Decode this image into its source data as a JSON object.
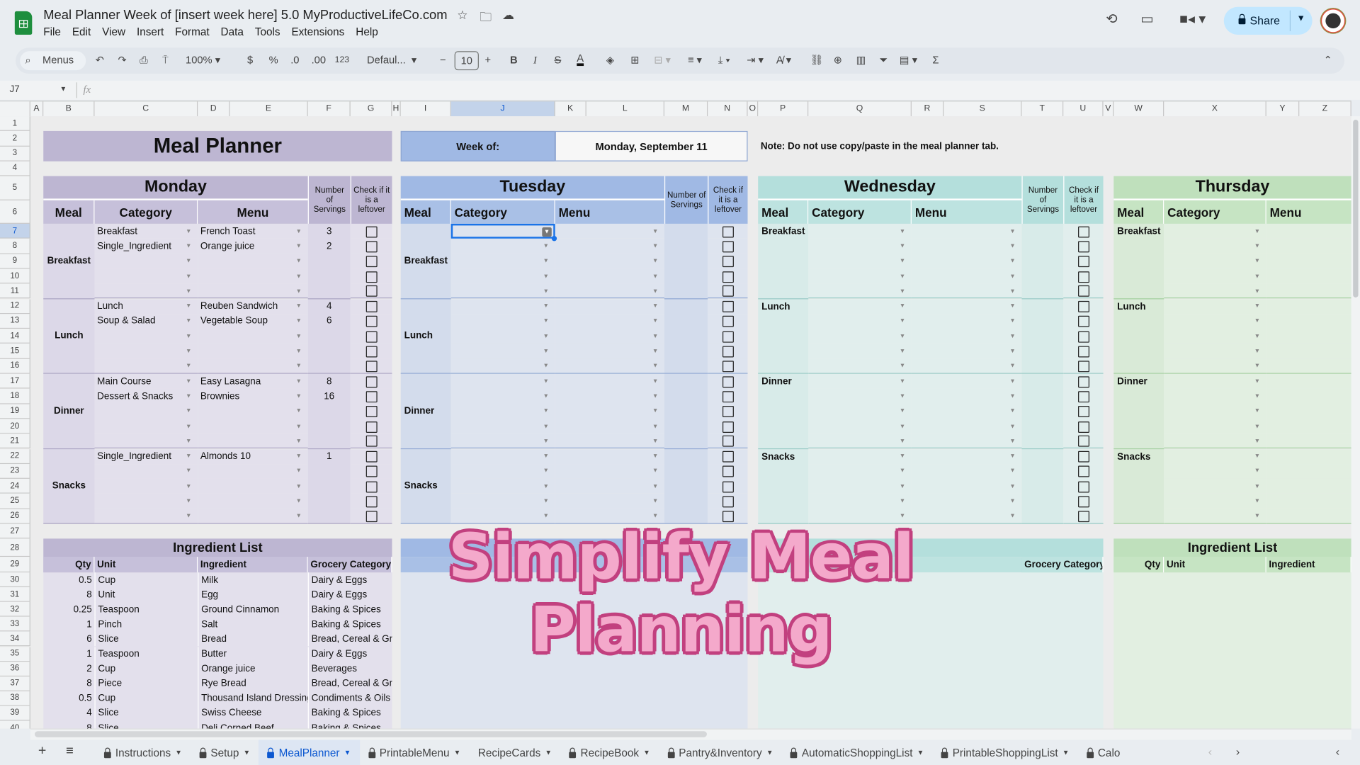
{
  "app": {
    "title": "Meal Planner Week of [insert week here] 5.0 MyProductiveLifeCo.com",
    "menu": [
      "File",
      "Edit",
      "View",
      "Insert",
      "Format",
      "Data",
      "Tools",
      "Extensions",
      "Help"
    ],
    "share_label": "Share"
  },
  "toolbar": {
    "search": "Menus",
    "zoom": "100%",
    "currency": "$",
    "percent": "%",
    "decrease_decimal": ".0",
    "increase_decimal": ".00",
    "number_format": "123",
    "font": "Defaul...",
    "font_size": "10",
    "bold": "B",
    "italic": "I",
    "text_color": "A",
    "functions": "Σ"
  },
  "formula_bar": {
    "cell_ref": "J7",
    "fx": "fx",
    "value": ""
  },
  "selected_cell": "J7",
  "columns": [
    "A",
    "B",
    "C",
    "D",
    "E",
    "F",
    "G",
    "H",
    "I",
    "J",
    "K",
    "L",
    "M",
    "N",
    "O",
    "P",
    "Q",
    "R",
    "S",
    "T",
    "U",
    "V",
    "W",
    "X",
    "Y",
    "Z"
  ],
  "sheet": {
    "title": "Meal Planner",
    "week_of_label": "Week of:",
    "week_of_value": "Monday, September 11",
    "note": "Note: Do not use copy/paste in the meal planner tab."
  },
  "headers": {
    "meal": "Meal",
    "category": "Category",
    "menu": "Menu",
    "servings": "Number of Servings",
    "leftover": "Check if it is a leftover"
  },
  "meal_labels": [
    "Breakfast",
    "Lunch",
    "Dinner",
    "Snacks"
  ],
  "days": [
    {
      "name": "Monday",
      "colors": {
        "head": "#bdb6d2",
        "sub": "#c6c0da",
        "body": "#e3e0ec",
        "side": "#dcd8e8",
        "line": "#a9a3c2"
      },
      "entries": [
        {
          "category": "Breakfast",
          "menu": "French Toast",
          "servings": "3"
        },
        {
          "category": "Single_Ingredient",
          "menu": "Orange juice",
          "servings": "2"
        },
        {},
        {},
        {},
        {
          "category": "Lunch",
          "menu": "Reuben Sandwich",
          "servings": "4"
        },
        {
          "category": "Soup & Salad",
          "menu": "Vegetable Soup",
          "servings": "6"
        },
        {},
        {},
        {},
        {
          "category": "Main Course",
          "menu": "Easy Lasagna",
          "servings": "8"
        },
        {
          "category": "Dessert & Snacks",
          "menu": "Brownies",
          "servings": "16"
        },
        {},
        {},
        {},
        {
          "category": "Single_Ingredient",
          "menu": "Almonds 10",
          "servings": "1"
        },
        {},
        {},
        {},
        {}
      ]
    },
    {
      "name": "Tuesday",
      "colors": {
        "head": "#a0b9e4",
        "sub": "#a9c0e6",
        "body": "#dee4ef",
        "side": "#d3dcec",
        "line": "#8ea6d2"
      },
      "entries": []
    },
    {
      "name": "Wednesday",
      "colors": {
        "head": "#b4dfdc",
        "sub": "#bde3e0",
        "body": "#e1eeed",
        "side": "#d8ebe9",
        "line": "#95c9c4"
      },
      "entries": []
    },
    {
      "name": "Thursday",
      "colors": {
        "head": "#bfe0bc",
        "sub": "#c6e4c3",
        "body": "#e2efe1",
        "side": "#d9ead7",
        "line": "#a2cf9e"
      },
      "entries": []
    }
  ],
  "ingredient_list": {
    "title": "Ingredient List",
    "headers": {
      "qty": "Qty",
      "unit": "Unit",
      "ingredient": "Ingredient",
      "grocery_category": "Grocery Category"
    },
    "rows": [
      [
        "0.5",
        "Cup",
        "Milk",
        "Dairy & Eggs"
      ],
      [
        "8",
        "Unit",
        "Egg",
        "Dairy & Eggs"
      ],
      [
        "0.25",
        "Teaspoon",
        "Ground Cinnamon",
        "Baking & Spices"
      ],
      [
        "1",
        "Pinch",
        "Salt",
        "Baking & Spices"
      ],
      [
        "6",
        "Slice",
        "Bread",
        "Bread, Cereal & Grains"
      ],
      [
        "1",
        "Teaspoon",
        "Butter",
        "Dairy & Eggs"
      ],
      [
        "2",
        "Cup",
        "Orange juice",
        "Beverages"
      ],
      [
        "8",
        "Piece",
        "Rye Bread",
        "Bread, Cereal & Grains"
      ],
      [
        "0.5",
        "Cup",
        "Thousand Island Dressing",
        "Condiments & Oils"
      ],
      [
        "4",
        "Slice",
        "Swiss Cheese",
        "Baking & Spices"
      ],
      [
        "8",
        "Slice",
        "Deli Corned Beef",
        "Baking & Spices"
      ]
    ]
  },
  "tabs": [
    {
      "label": "Instructions",
      "locked": true
    },
    {
      "label": "Setup",
      "locked": true
    },
    {
      "label": "MealPlanner",
      "locked": true,
      "active": true
    },
    {
      "label": "PrintableMenu",
      "locked": true
    },
    {
      "label": "RecipeCards",
      "locked": false
    },
    {
      "label": "RecipeBook",
      "locked": true
    },
    {
      "label": "Pantry&Inventory",
      "locked": true
    },
    {
      "label": "AutomaticShoppingList",
      "locked": true
    },
    {
      "label": "PrintableShoppingList",
      "locked": true
    },
    {
      "label": "Calo",
      "locked": true
    }
  ],
  "overlay_caption": "Simplify Meal Planning",
  "accent": "#0b57d0"
}
